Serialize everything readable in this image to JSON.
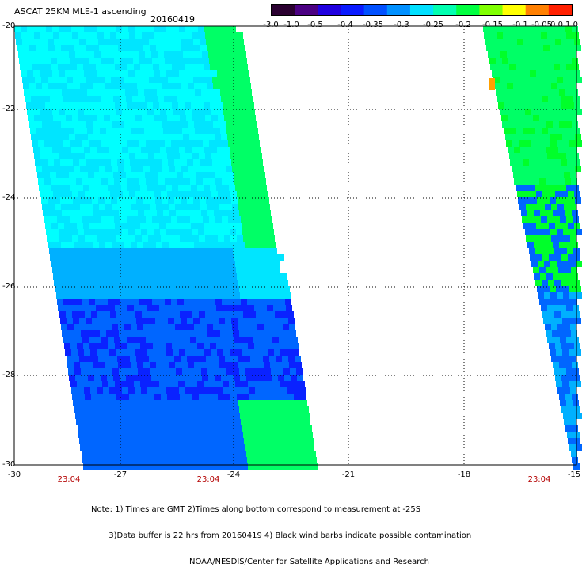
{
  "header": {
    "title": "ASCAT 25KM MLE-1 ascending",
    "date": "20160419"
  },
  "colorbar": {
    "tick_labels": [
      "-3.0",
      "-1.0",
      "-0.5",
      "-0.4",
      "-0.35",
      "-0.3",
      "-0.25",
      "-0.2",
      "-0.15",
      "-0.1",
      "-0.05",
      "0.0",
      "1.0"
    ],
    "colors": [
      "#2a0030",
      "#4b0082",
      "#2000e0",
      "#0a1aff",
      "#0050ff",
      "#0090ff",
      "#00e0ff",
      "#00ffb0",
      "#00ff40",
      "#80ff00",
      "#ffff00",
      "#ff8000",
      "#ff2000"
    ]
  },
  "map": {
    "lon_labels": [
      "-30",
      "-27",
      "-24",
      "-21",
      "-18",
      "-15"
    ],
    "lat_labels": [
      "-20",
      "-22",
      "-24",
      "-26",
      "-28",
      "-30"
    ],
    "time_labels": [
      "23:04",
      "23:04",
      "23:04"
    ],
    "grid": "dotted",
    "swath_colors": [
      "#00ffff",
      "#00e5ff",
      "#00b0ff",
      "#0066ff",
      "#0a22ff",
      "#00ff66",
      "#00ff2a",
      "#ffa000"
    ]
  },
  "notes": [
    "Note: 1) Times are GMT 2)Times along bottom correspond to measurement at -25S",
    "       3)Data buffer is 22 hrs from 20160419 4) Black wind barbs indicate possible contamination",
    "                                       NOAA/NESDIS/Center for Satellite Applications and Research"
  ]
}
